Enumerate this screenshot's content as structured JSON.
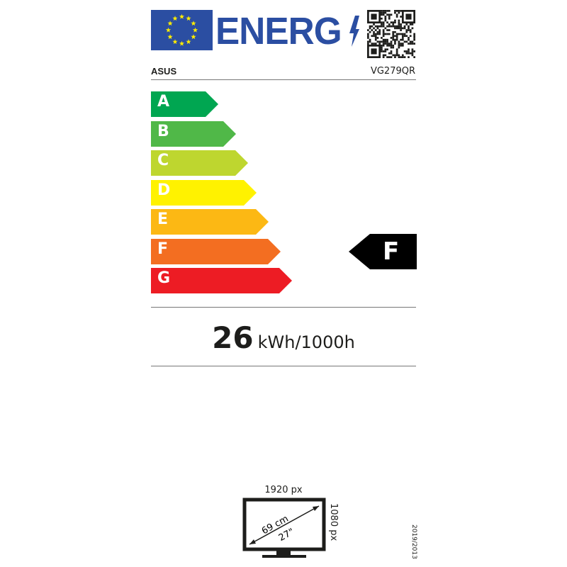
{
  "header": {
    "logo_text": "ENERG",
    "flag": "eu-flag",
    "qr": "qr-code"
  },
  "supplier": "ASUS",
  "model": "VG279QR",
  "scale": {
    "classes": [
      {
        "letter": "A",
        "color": "#00a651"
      },
      {
        "letter": "B",
        "color": "#50b848"
      },
      {
        "letter": "C",
        "color": "#bed62f"
      },
      {
        "letter": "D",
        "color": "#fff200"
      },
      {
        "letter": "E",
        "color": "#fcb814"
      },
      {
        "letter": "F",
        "color": "#f36e21"
      },
      {
        "letter": "G",
        "color": "#ed1c24"
      }
    ],
    "rating": "F"
  },
  "energy": {
    "value": "26",
    "unit": "kWh/1000h"
  },
  "screen": {
    "horizontal_resolution": "1920 px",
    "vertical_resolution": "1080 px",
    "diagonal_cm": "69 cm",
    "diagonal_in": "27\""
  },
  "regulation": "2019/2013"
}
